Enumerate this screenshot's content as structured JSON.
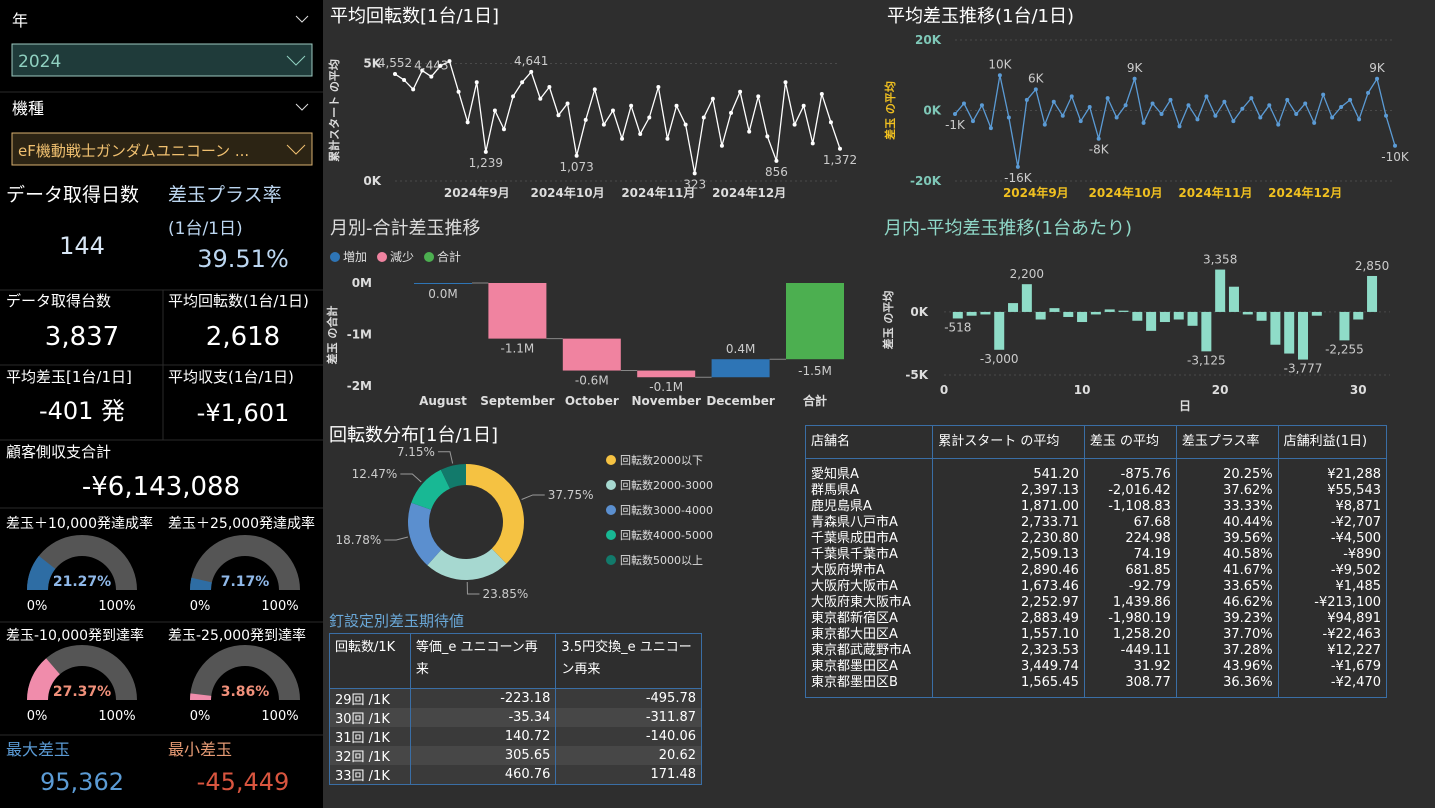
{
  "slicers": [
    {
      "label": "年",
      "value": "2024"
    },
    {
      "label": "機種",
      "value": "eF機動戦士ガンダムユニコーン ..."
    }
  ],
  "cards": {
    "days": {
      "label": "データ取得日数",
      "value": "144"
    },
    "plus_rate": {
      "label": "差玉プラス率",
      "sublabel": "(1台/1日)",
      "value": "39.51%"
    },
    "machines": {
      "label": "データ取得台数",
      "value": "3,837"
    },
    "avg_spins": {
      "label": "平均回転数(1台/1日)",
      "value": "2,618"
    },
    "avg_balls": {
      "label": "平均差玉[1台/1日]",
      "value": "-401 発"
    },
    "avg_income": {
      "label": "平均収支(1台/1日)",
      "value": "-¥1,601"
    },
    "total_income": {
      "label": "顧客側収支合計",
      "value": "-¥6,143,088"
    },
    "max_balls": {
      "label": "最大差玉",
      "value": "95,362"
    },
    "min_balls": {
      "label": "最小差玉",
      "value": "-45,449"
    }
  },
  "chart_data": [
    {
      "type": "line",
      "title": "平均回転数[1台/1日]",
      "y_label": "累計スタート の平均",
      "color": "#ffffff",
      "grid": true,
      "values": [
        4552,
        4300,
        3900,
        4700,
        4443,
        4900,
        5100,
        3800,
        2500,
        4200,
        1239,
        3000,
        2200,
        3600,
        4200,
        4641,
        3500,
        4000,
        2800,
        3300,
        1073,
        2600,
        3900,
        2400,
        3000,
        1800,
        3200,
        2000,
        2700,
        4000,
        1800,
        3200,
        2400,
        323,
        2700,
        3500,
        1500,
        2900,
        3800,
        2100,
        3600,
        1900,
        856,
        4200,
        2400,
        3200,
        1600,
        3700,
        2500,
        1372
      ],
      "value_labels": [
        "4,552",
        null,
        null,
        null,
        "4,443",
        null,
        null,
        null,
        null,
        null,
        "1,239",
        null,
        null,
        null,
        null,
        "4,641",
        null,
        null,
        null,
        null,
        "1,073",
        null,
        null,
        null,
        null,
        null,
        null,
        null,
        null,
        null,
        null,
        null,
        null,
        "323",
        null,
        null,
        null,
        null,
        null,
        null,
        null,
        null,
        "856",
        null,
        null,
        null,
        null,
        null,
        null,
        "1,372"
      ],
      "xticks": [
        {
          "value": 9,
          "label": "2024年9月"
        },
        {
          "value": 19,
          "label": "2024年10月"
        },
        {
          "value": 29,
          "label": "2024年11月"
        },
        {
          "value": 39,
          "label": "2024年12月"
        }
      ],
      "ylim": [
        0,
        6000
      ],
      "yticks": [
        {
          "value": 0,
          "label": "0K"
        },
        {
          "value": 5000,
          "label": "5K"
        }
      ]
    },
    {
      "type": "line",
      "title": "平均差玉推移(1台/1日)",
      "y_label": "差玉 の平均",
      "color": "#5b9bd5",
      "grid": true,
      "values": [
        -1000,
        2000,
        -3000,
        1500,
        -5000,
        10000,
        -2000,
        -16000,
        3000,
        6000,
        -4000,
        2500,
        -1500,
        4000,
        -3000,
        1000,
        -8000,
        3500,
        -2000,
        1500,
        9000,
        -3500,
        2000,
        -1000,
        3000,
        -4500,
        1500,
        -2500,
        4000,
        -1500,
        2500,
        -3000,
        500,
        3500,
        -2000,
        1500,
        -4000,
        3000,
        -1000,
        2000,
        -3500,
        4500,
        -2000,
        1000,
        3000,
        -2500,
        5000,
        9000,
        -1500,
        -10000
      ],
      "value_labels": [
        "-1K",
        null,
        null,
        null,
        null,
        "10K",
        null,
        "-16K",
        null,
        "6K",
        null,
        null,
        null,
        null,
        null,
        null,
        "-8K",
        null,
        null,
        null,
        "9K",
        null,
        null,
        null,
        null,
        null,
        null,
        null,
        null,
        null,
        null,
        null,
        null,
        null,
        null,
        null,
        null,
        null,
        null,
        null,
        null,
        null,
        null,
        null,
        null,
        null,
        null,
        "9K",
        null,
        "-10K"
      ],
      "xticks": [
        {
          "value": 9,
          "label": "2024年9月"
        },
        {
          "value": 19,
          "label": "2024年10月"
        },
        {
          "value": 29,
          "label": "2024年11月"
        },
        {
          "value": 39,
          "label": "2024年12月"
        }
      ],
      "ylim": [
        -20000,
        20000
      ],
      "yticks": [
        {
          "value": -20000,
          "label": "-20K"
        },
        {
          "value": 0,
          "label": "0K"
        },
        {
          "value": 20000,
          "label": "20K"
        }
      ]
    },
    {
      "type": "waterfall",
      "title": "月別-合計差玉推移",
      "y_label": "差玉 の合計",
      "legend": [
        {
          "name": "増加",
          "color": "#2e75b6"
        },
        {
          "name": "減少",
          "color": "#f083a0"
        },
        {
          "name": "合計",
          "color": "#4caf50"
        }
      ],
      "categories": [
        "August",
        "September",
        "October",
        "November",
        "December"
      ],
      "values": [
        0,
        -1080000,
        -620000,
        -130000,
        350000
      ],
      "value_labels": [
        "0.0M",
        "-1.1M",
        "-0.6M",
        "-0.1M",
        "0.4M"
      ],
      "total_category": "合計",
      "total": -1480000,
      "total_label": "-1.5M",
      "ylim": [
        -2000000,
        0
      ],
      "yticks": [
        {
          "value": 0,
          "label": "0M"
        },
        {
          "value": -1000000,
          "label": "-1M"
        },
        {
          "value": -2000000,
          "label": "-2M"
        }
      ]
    },
    {
      "type": "bar",
      "title": "月内-平均差玉推移(1台あたり)",
      "y_label": "差玉 の平均",
      "x_label": "日",
      "color": "#8fdcc8",
      "grid": true,
      "x": [
        1,
        2,
        3,
        4,
        5,
        6,
        7,
        8,
        9,
        10,
        11,
        12,
        13,
        14,
        15,
        16,
        17,
        18,
        19,
        20,
        21,
        22,
        23,
        24,
        25,
        26,
        27,
        28,
        29,
        30,
        31
      ],
      "values": [
        -518,
        -300,
        -200,
        -3000,
        700,
        2200,
        -600,
        300,
        -400,
        -800,
        -200,
        200,
        100,
        -700,
        -1500,
        -800,
        -600,
        -1100,
        -3125,
        3358,
        2000,
        -200,
        -700,
        -2600,
        -3300,
        -3777,
        -300,
        0,
        -2255,
        -600,
        2850
      ],
      "value_labels": [
        "-518",
        null,
        null,
        "-3,000",
        null,
        "2,200",
        null,
        null,
        null,
        null,
        null,
        null,
        null,
        null,
        null,
        null,
        null,
        null,
        "-3,125",
        "3,358",
        null,
        null,
        null,
        null,
        null,
        "-3,777",
        null,
        null,
        "-2,255",
        null,
        "2,850"
      ],
      "xlim": [
        0,
        32.3
      ],
      "xticks": [
        0,
        10,
        20,
        30
      ],
      "ylim": [
        -5000,
        3800
      ],
      "yticks": [
        {
          "value": -5000,
          "label": "-5K"
        },
        {
          "value": 0,
          "label": "0K"
        }
      ]
    },
    {
      "type": "donut",
      "title": "回転数分布[1台/1日]",
      "categories": [
        "回転数2000以下",
        "回転数2000-3000",
        "回転数3000-4000",
        "回転数4000-5000",
        "回転数5000以上"
      ],
      "values": [
        37.75,
        23.85,
        18.78,
        12.47,
        7.15
      ],
      "value_labels": [
        "37.75%",
        "23.85%",
        "18.78%",
        "12.47%",
        "7.15%"
      ],
      "colors": [
        "#f5c242",
        "#a6d8d0",
        "#5b8fcf",
        "#18b894",
        "#127a6b"
      ]
    },
    {
      "type": "gauge",
      "title": "差玉＋10,000発達成率",
      "value": 21.27,
      "value_label": "21.27%",
      "color": "#2e6da4",
      "label_color": "#8fb8e8",
      "lim": [
        {
          "value": 0,
          "label": "0%"
        },
        {
          "value": 100,
          "label": "100%"
        }
      ]
    },
    {
      "type": "gauge",
      "title": "差玉＋25,000発達成率",
      "value": 7.17,
      "value_label": "7.17%",
      "color": "#2e6da4",
      "label_color": "#8fb8e8",
      "lim": [
        {
          "value": 0,
          "label": "0%"
        },
        {
          "value": 100,
          "label": "100%"
        }
      ]
    },
    {
      "type": "gauge",
      "title": "差玉-10,000発到達率",
      "value": 27.37,
      "value_label": "27.37%",
      "color": "#f08cab",
      "label_color": "#f0907a",
      "lim": [
        {
          "value": 0,
          "label": "0%"
        },
        {
          "value": 100,
          "label": "100%"
        }
      ]
    },
    {
      "type": "gauge",
      "title": "差玉-25,000発到達率",
      "value": 3.86,
      "value_label": "3.86%",
      "color": "#f08cab",
      "label_color": "#f0907a",
      "lim": [
        {
          "value": 0,
          "label": "0%"
        },
        {
          "value": 100,
          "label": "100%"
        }
      ]
    }
  ],
  "nail_table": {
    "title": "釘設定別差玉期待値",
    "columns": [
      "回転数/1K",
      "等価_e ユニコーン再来",
      "3.5円交換_e ユニコーン再来"
    ],
    "rows": [
      [
        "29回 /1K",
        "-223.18",
        "-495.78"
      ],
      [
        "30回 /1K",
        "-35.34",
        "-311.87"
      ],
      [
        "31回 /1K",
        "140.72",
        "-140.06"
      ],
      [
        "32回 /1K",
        "305.65",
        "20.62"
      ],
      [
        "33回 /1K",
        "460.76",
        "171.48"
      ]
    ]
  },
  "store_table": {
    "columns": [
      "店舗名",
      "累計スタート の平均",
      "差玉 の平均",
      "差玉プラス率",
      "店舗利益(1日)"
    ],
    "rows": [
      [
        "愛知県A",
        "541.20",
        "-875.76",
        "20.25%",
        "¥21,288"
      ],
      [
        "群馬県A",
        "2,397.13",
        "-2,016.42",
        "37.62%",
        "¥55,543"
      ],
      [
        "鹿児島県A",
        "1,871.00",
        "-1,108.83",
        "33.33%",
        "¥8,871"
      ],
      [
        "青森県八戸市A",
        "2,733.71",
        "67.68",
        "40.44%",
        "-¥2,707"
      ],
      [
        "千葉県成田市A",
        "2,230.80",
        "224.98",
        "39.56%",
        "-¥4,500"
      ],
      [
        "千葉県千葉市A",
        "2,509.13",
        "74.19",
        "40.58%",
        "-¥890"
      ],
      [
        "大阪府堺市A",
        "2,890.46",
        "681.85",
        "41.67%",
        "-¥9,502"
      ],
      [
        "大阪府大阪市A",
        "1,673.46",
        "-92.79",
        "33.65%",
        "¥1,485"
      ],
      [
        "大阪府東大阪市A",
        "2,252.97",
        "1,439.86",
        "46.62%",
        "-¥213,100"
      ],
      [
        "東京都新宿区A",
        "2,883.49",
        "-1,980.19",
        "39.23%",
        "¥94,891"
      ],
      [
        "東京都大田区A",
        "1,557.10",
        "1,258.20",
        "37.70%",
        "-¥22,463"
      ],
      [
        "東京都武蔵野市A",
        "2,323.53",
        "-449.11",
        "37.28%",
        "¥12,227"
      ],
      [
        "東京都墨田区A",
        "3,449.74",
        "31.92",
        "43.96%",
        "-¥1,679"
      ],
      [
        "東京都墨田区B",
        "1,565.45",
        "308.77",
        "36.36%",
        "-¥2,470"
      ]
    ]
  }
}
